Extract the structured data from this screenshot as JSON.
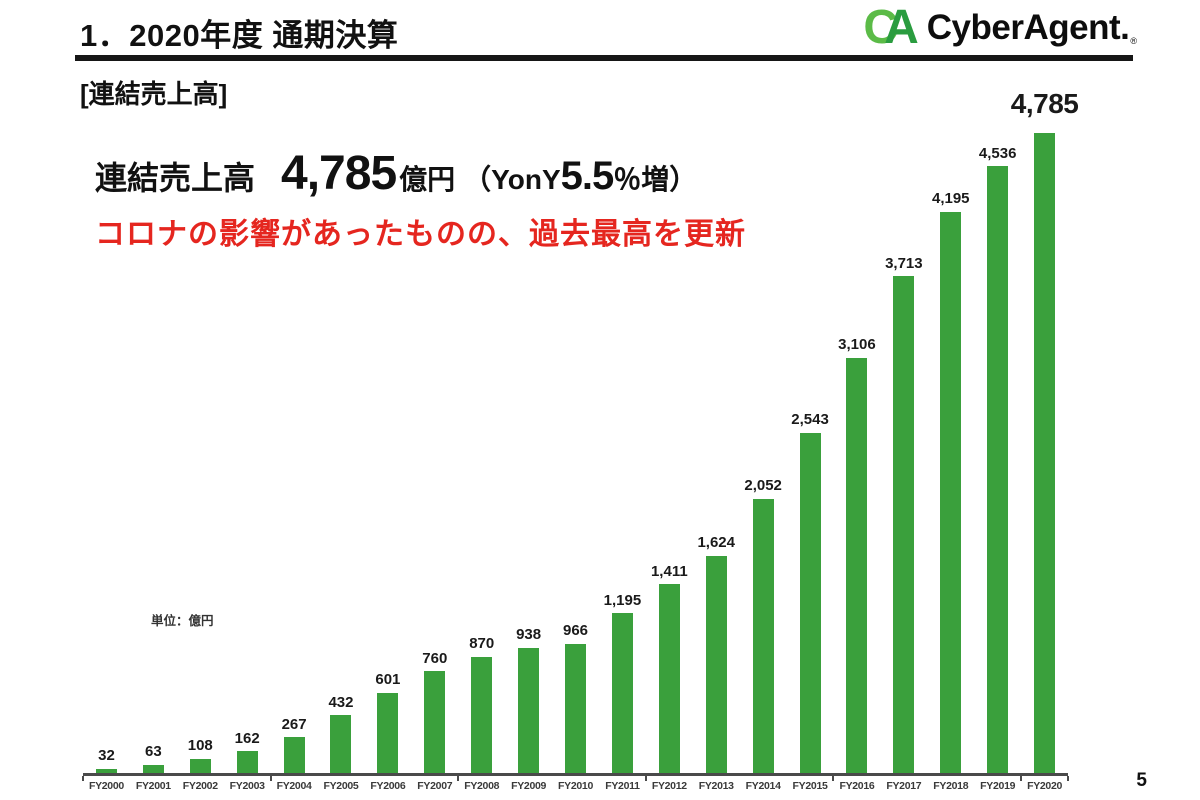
{
  "page": {
    "title": "1．2020年度 通期決算",
    "page_number": "5"
  },
  "logo": {
    "mark_c": "C",
    "mark_a": "A",
    "wordmark": "CyberAgent.",
    "reg": "®"
  },
  "section_label": "[連結売上高]",
  "headline": {
    "prefix": "連結売上高",
    "value": "4,785",
    "unit": "億円",
    "yoy_open": "（YonY",
    "yoy_value": "5.5",
    "yoy_close": "％増）",
    "subtitle": "コロナの影響があったものの、過去最高を更新"
  },
  "chart_data": {
    "type": "bar",
    "title": "連結売上高",
    "unit_label": "単位：億円",
    "categories": [
      "FY2000",
      "FY2001",
      "FY2002",
      "FY2003",
      "FY2004",
      "FY2005",
      "FY2006",
      "FY2007",
      "FY2008",
      "FY2009",
      "FY2010",
      "FY2011",
      "FY2012",
      "FY2013",
      "FY2014",
      "FY2015",
      "FY2016",
      "FY2017",
      "FY2018",
      "FY2019",
      "FY2020"
    ],
    "values": [
      32,
      63,
      108,
      162,
      267,
      432,
      601,
      760,
      870,
      938,
      966,
      1195,
      1411,
      1624,
      2052,
      2543,
      3106,
      3713,
      4195,
      4536,
      4785
    ],
    "values_formatted": [
      "32",
      "63",
      "108",
      "162",
      "267",
      "432",
      "601",
      "760",
      "870",
      "938",
      "966",
      "1,195",
      "1,411",
      "1,624",
      "2,052",
      "2,543",
      "3,106",
      "3,713",
      "4,195",
      "4,536",
      "4,785"
    ],
    "ylim": [
      0,
      4785
    ],
    "xlabel": "",
    "ylabel": "億円",
    "grid": false,
    "legend": "none",
    "data_labels": "above-bars",
    "highlight_last_label": true
  },
  "colors": {
    "bar_green": "#3aa03c",
    "accent_red": "#e5261f",
    "logo_green_light": "#5bbb47",
    "logo_green_dark": "#2a9c3f",
    "axis_gray": "#4a4a4a",
    "text_black": "#111111"
  }
}
